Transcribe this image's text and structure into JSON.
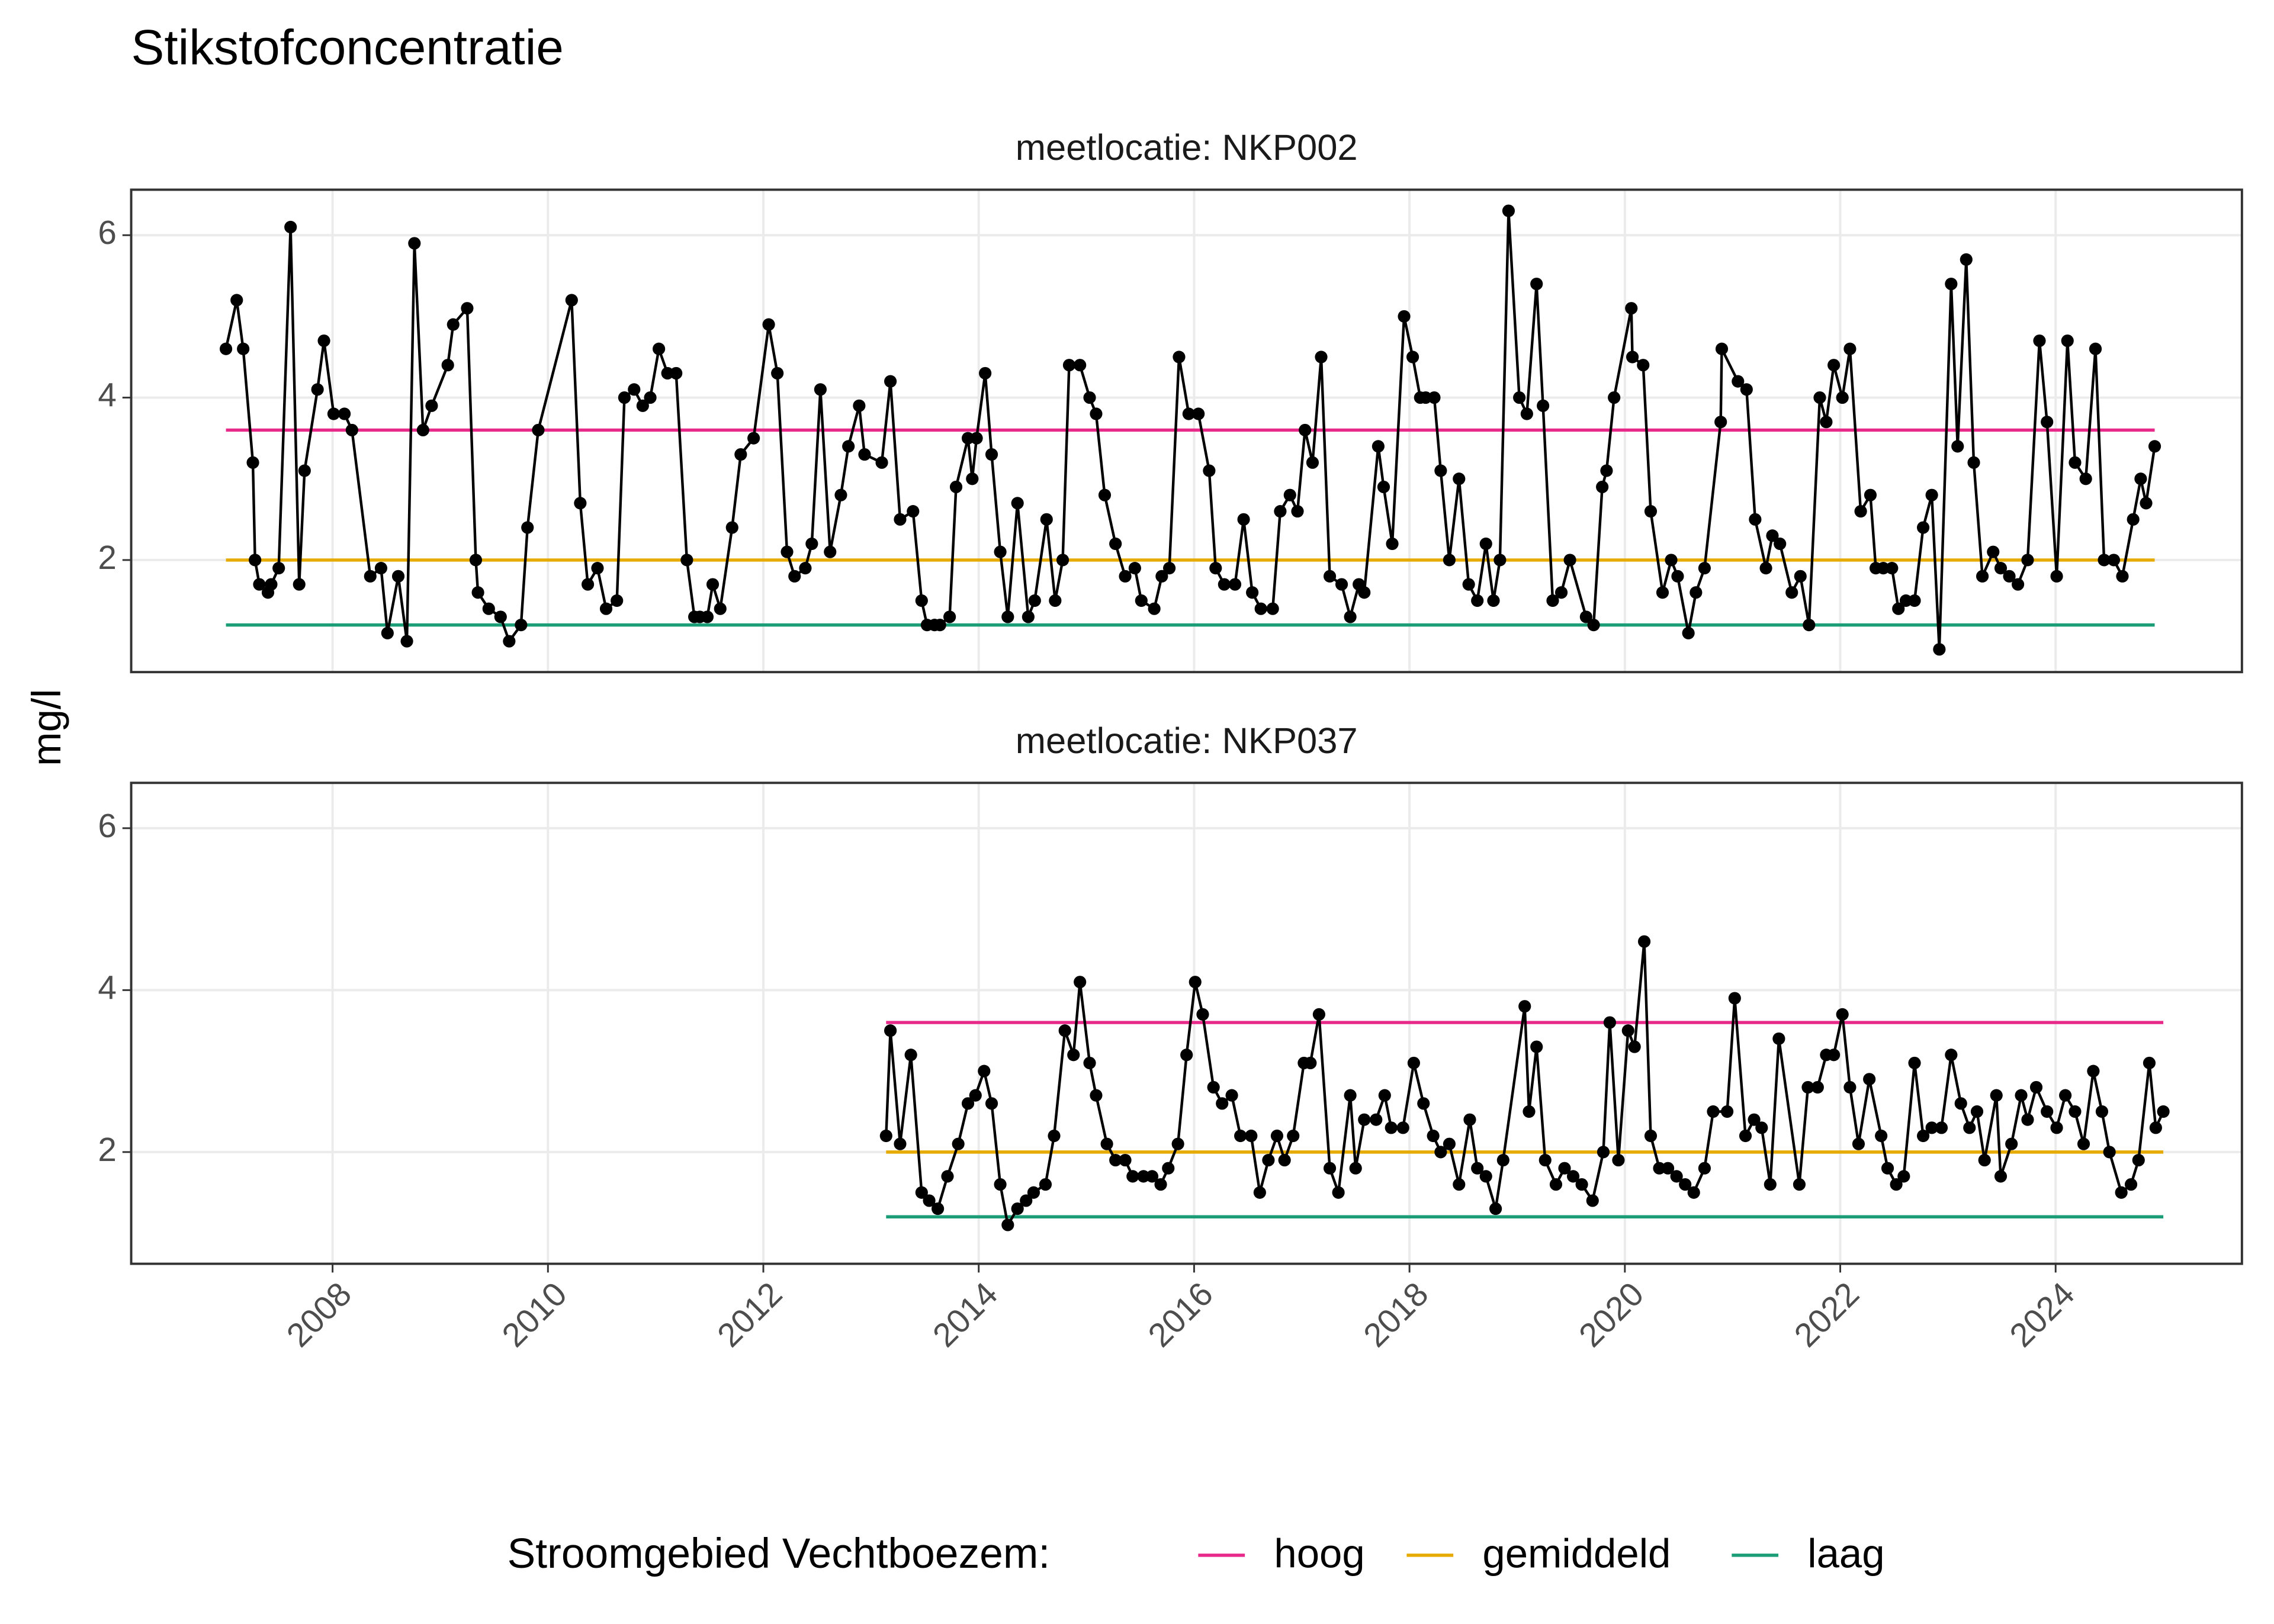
{
  "chart_data": {
    "type": "line",
    "title": "Stikstofconcentratie",
    "ylabel": "mg/l",
    "legend_title": "Stroomgebied Vechtboezem:",
    "line_color": "#000000",
    "grid": true,
    "xlim": [
      2006.13,
      2025.73
    ],
    "xticks": [
      2008,
      2010,
      2012,
      2014,
      2016,
      2018,
      2020,
      2022,
      2024
    ],
    "ylim": [
      0.62,
      6.56
    ],
    "yticks": [
      2,
      4,
      6
    ],
    "thresholds": [
      {
        "name": "hoog",
        "color": "#e7298a",
        "value": 3.6
      },
      {
        "name": "gemiddeld",
        "color": "#e6ab02",
        "value": 2.0
      },
      {
        "name": "laag",
        "color": "#1b9e77",
        "value": 1.2
      }
    ],
    "panels": [
      {
        "label": "meetlocatie: NKP002",
        "x": [
          2007.01,
          2007.11,
          2007.17,
          2007.26,
          2007.28,
          2007.32,
          2007.4,
          2007.43,
          2007.5,
          2007.61,
          2007.69,
          2007.74,
          2007.86,
          2007.92,
          2008.01,
          2008.11,
          2008.18,
          2008.35,
          2008.45,
          2008.51,
          2008.61,
          2008.69,
          2008.76,
          2008.84,
          2008.92,
          2009.07,
          2009.12,
          2009.25,
          2009.33,
          2009.35,
          2009.45,
          2009.56,
          2009.64,
          2009.75,
          2009.81,
          2009.91,
          2010.22,
          2010.3,
          2010.37,
          2010.46,
          2010.54,
          2010.64,
          2010.71,
          2010.8,
          2010.88,
          2010.95,
          2011.03,
          2011.11,
          2011.19,
          2011.29,
          2011.36,
          2011.41,
          2011.48,
          2011.53,
          2011.6,
          2011.71,
          2011.79,
          2011.91,
          2012.05,
          2012.13,
          2012.22,
          2012.29,
          2012.39,
          2012.45,
          2012.53,
          2012.62,
          2012.72,
          2012.79,
          2012.89,
          2012.94,
          2013.1,
          2013.18,
          2013.27,
          2013.39,
          2013.47,
          2013.52,
          2013.59,
          2013.64,
          2013.73,
          2013.79,
          2013.9,
          2013.94,
          2013.98,
          2014.06,
          2014.12,
          2014.2,
          2014.27,
          2014.36,
          2014.46,
          2014.52,
          2014.63,
          2014.71,
          2014.78,
          2014.84,
          2014.94,
          2015.03,
          2015.09,
          2015.17,
          2015.27,
          2015.36,
          2015.45,
          2015.51,
          2015.63,
          2015.7,
          2015.77,
          2015.86,
          2015.95,
          2016.04,
          2016.14,
          2016.2,
          2016.28,
          2016.38,
          2016.46,
          2016.54,
          2016.62,
          2016.73,
          2016.8,
          2016.89,
          2016.96,
          2017.03,
          2017.1,
          2017.18,
          2017.26,
          2017.37,
          2017.45,
          2017.53,
          2017.58,
          2017.71,
          2017.76,
          2017.84,
          2017.95,
          2018.03,
          2018.1,
          2018.15,
          2018.23,
          2018.29,
          2018.37,
          2018.46,
          2018.55,
          2018.63,
          2018.71,
          2018.78,
          2018.84,
          2018.92,
          2019.02,
          2019.09,
          2019.18,
          2019.24,
          2019.33,
          2019.41,
          2019.49,
          2019.64,
          2019.71,
          2019.79,
          2019.83,
          2019.9,
          2020.06,
          2020.07,
          2020.17,
          2020.24,
          2020.35,
          2020.43,
          2020.49,
          2020.59,
          2020.66,
          2020.74,
          2020.89,
          2020.9,
          2021.05,
          2021.13,
          2021.21,
          2021.31,
          2021.37,
          2021.44,
          2021.55,
          2021.63,
          2021.71,
          2021.81,
          2021.87,
          2021.94,
          2022.02,
          2022.09,
          2022.19,
          2022.28,
          2022.33,
          2022.4,
          2022.48,
          2022.54,
          2022.61,
          2022.69,
          2022.77,
          2022.85,
          2022.92,
          2023.03,
          2023.09,
          2023.17,
          2023.24,
          2023.32,
          2023.42,
          2023.49,
          2023.57,
          2023.65,
          2023.74,
          2023.85,
          2023.92,
          2024.01,
          2024.11,
          2024.18,
          2024.28,
          2024.37,
          2024.45,
          2024.54,
          2024.62,
          2024.72,
          2024.79,
          2024.84,
          2024.92
        ],
        "values": [
          4.6,
          5.2,
          4.6,
          3.2,
          2.0,
          1.7,
          1.6,
          1.7,
          1.9,
          6.1,
          1.7,
          3.1,
          4.1,
          4.7,
          3.8,
          3.8,
          3.6,
          1.8,
          1.9,
          1.1,
          1.8,
          1.0,
          5.9,
          3.6,
          3.9,
          4.4,
          4.9,
          5.1,
          2.0,
          1.6,
          1.4,
          1.3,
          1.0,
          1.2,
          2.4,
          3.6,
          5.2,
          2.7,
          1.7,
          1.9,
          1.4,
          1.5,
          4.0,
          4.1,
          3.9,
          4.0,
          4.6,
          4.3,
          4.3,
          2.0,
          1.3,
          1.3,
          1.3,
          1.7,
          1.4,
          2.4,
          3.3,
          3.5,
          4.9,
          4.3,
          2.1,
          1.8,
          1.9,
          2.2,
          4.1,
          2.1,
          2.8,
          3.4,
          3.9,
          3.3,
          3.2,
          4.2,
          2.5,
          2.6,
          1.5,
          1.2,
          1.2,
          1.2,
          1.3,
          2.9,
          3.5,
          3.0,
          3.5,
          4.3,
          3.3,
          2.1,
          1.3,
          2.7,
          1.3,
          1.5,
          2.5,
          1.5,
          2.0,
          4.4,
          4.4,
          4.0,
          3.8,
          2.8,
          2.2,
          1.8,
          1.9,
          1.5,
          1.4,
          1.8,
          1.9,
          4.5,
          3.8,
          3.8,
          3.1,
          1.9,
          1.7,
          1.7,
          2.5,
          1.6,
          1.4,
          1.4,
          2.6,
          2.8,
          2.6,
          3.6,
          3.2,
          4.5,
          1.8,
          1.7,
          1.3,
          1.7,
          1.6,
          3.4,
          2.9,
          2.2,
          5.0,
          4.5,
          4.0,
          4.0,
          4.0,
          3.1,
          2.0,
          3.0,
          1.7,
          1.5,
          2.2,
          1.5,
          2.0,
          6.3,
          4.0,
          3.8,
          5.4,
          3.9,
          1.5,
          1.6,
          2.0,
          1.3,
          1.2,
          2.9,
          3.1,
          4.0,
          5.1,
          4.5,
          4.4,
          2.6,
          1.6,
          2.0,
          1.8,
          1.1,
          1.6,
          1.9,
          3.7,
          4.6,
          4.2,
          4.1,
          2.5,
          1.9,
          2.3,
          2.2,
          1.6,
          1.8,
          1.2,
          4.0,
          3.7,
          4.4,
          4.0,
          4.6,
          2.6,
          2.8,
          1.9,
          1.9,
          1.9,
          1.4,
          1.5,
          1.5,
          2.4,
          2.8,
          0.9,
          5.4,
          3.4,
          5.7,
          3.2,
          1.8,
          2.1,
          1.9,
          1.8,
          1.7,
          2.0,
          4.7,
          3.7,
          1.8,
          4.7,
          3.2,
          3.0,
          4.6,
          2.0,
          2.0,
          1.8,
          2.5,
          3.0,
          2.7,
          3.4
        ]
      },
      {
        "label": "meetlocatie: NKP037",
        "x": [
          2013.14,
          2013.18,
          2013.27,
          2013.37,
          2013.47,
          2013.54,
          2013.62,
          2013.71,
          2013.81,
          2013.9,
          2013.97,
          2014.05,
          2014.12,
          2014.2,
          2014.27,
          2014.36,
          2014.44,
          2014.51,
          2014.62,
          2014.7,
          2014.8,
          2014.88,
          2014.94,
          2015.03,
          2015.09,
          2015.19,
          2015.27,
          2015.36,
          2015.43,
          2015.53,
          2015.61,
          2015.69,
          2015.76,
          2015.85,
          2015.93,
          2016.01,
          2016.08,
          2016.18,
          2016.26,
          2016.35,
          2016.43,
          2016.53,
          2016.61,
          2016.69,
          2016.77,
          2016.84,
          2016.92,
          2017.02,
          2017.08,
          2017.16,
          2017.26,
          2017.34,
          2017.45,
          2017.5,
          2017.58,
          2017.69,
          2017.77,
          2017.83,
          2017.94,
          2018.04,
          2018.13,
          2018.22,
          2018.29,
          2018.37,
          2018.46,
          2018.56,
          2018.63,
          2018.71,
          2018.8,
          2018.87,
          2019.07,
          2019.11,
          2019.18,
          2019.26,
          2019.36,
          2019.44,
          2019.52,
          2019.6,
          2019.7,
          2019.8,
          2019.86,
          2019.94,
          2020.03,
          2020.09,
          2020.18,
          2020.24,
          2020.32,
          2020.4,
          2020.48,
          2020.56,
          2020.64,
          2020.74,
          2020.82,
          2020.95,
          2021.02,
          2021.12,
          2021.2,
          2021.27,
          2021.35,
          2021.43,
          2021.62,
          2021.7,
          2021.79,
          2021.87,
          2021.94,
          2022.02,
          2022.09,
          2022.17,
          2022.27,
          2022.38,
          2022.44,
          2022.52,
          2022.59,
          2022.69,
          2022.77,
          2022.85,
          2022.94,
          2023.03,
          2023.12,
          2023.2,
          2023.27,
          2023.34,
          2023.45,
          2023.49,
          2023.59,
          2023.68,
          2023.74,
          2023.82,
          2023.92,
          2024.01,
          2024.09,
          2024.18,
          2024.26,
          2024.35,
          2024.43,
          2024.5,
          2024.61,
          2024.7,
          2024.77,
          2024.87,
          2024.93,
          2025.0
        ],
        "values": [
          2.2,
          3.5,
          2.1,
          3.2,
          1.5,
          1.4,
          1.3,
          1.7,
          2.1,
          2.6,
          2.7,
          3.0,
          2.6,
          1.6,
          1.1,
          1.3,
          1.4,
          1.5,
          1.6,
          2.2,
          3.5,
          3.2,
          4.1,
          3.1,
          2.7,
          2.1,
          1.9,
          1.9,
          1.7,
          1.7,
          1.7,
          1.6,
          1.8,
          2.1,
          3.2,
          4.1,
          3.7,
          2.8,
          2.6,
          2.7,
          2.2,
          2.2,
          1.5,
          1.9,
          2.2,
          1.9,
          2.2,
          3.1,
          3.1,
          3.7,
          1.8,
          1.5,
          2.7,
          1.8,
          2.4,
          2.4,
          2.7,
          2.3,
          2.3,
          3.1,
          2.6,
          2.2,
          2.0,
          2.1,
          1.6,
          2.4,
          1.8,
          1.7,
          1.3,
          1.9,
          3.8,
          2.5,
          3.3,
          1.9,
          1.6,
          1.8,
          1.7,
          1.6,
          1.4,
          2.0,
          3.6,
          1.9,
          3.5,
          3.3,
          4.6,
          2.2,
          1.8,
          1.8,
          1.7,
          1.6,
          1.5,
          1.8,
          2.5,
          2.5,
          3.9,
          2.2,
          2.4,
          2.3,
          1.6,
          3.4,
          1.6,
          2.8,
          2.8,
          3.2,
          3.2,
          3.7,
          2.8,
          2.1,
          2.9,
          2.2,
          1.8,
          1.6,
          1.7,
          3.1,
          2.2,
          2.3,
          2.3,
          3.2,
          2.6,
          2.3,
          2.5,
          1.9,
          2.7,
          1.7,
          2.1,
          2.7,
          2.4,
          2.8,
          2.5,
          2.3,
          2.7,
          2.5,
          2.1,
          3.0,
          2.5,
          2.0,
          1.5,
          1.6,
          1.9,
          3.1,
          2.3,
          2.5
        ]
      }
    ]
  }
}
